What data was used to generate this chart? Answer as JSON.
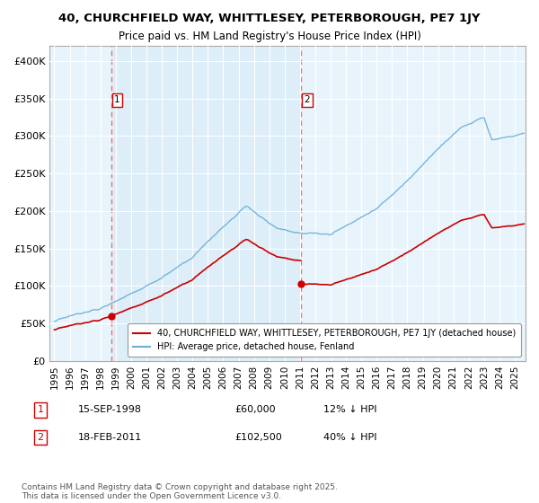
{
  "title": "40, CHURCHFIELD WAY, WHITTLESEY, PETERBOROUGH, PE7 1JY",
  "subtitle": "Price paid vs. HM Land Registry's House Price Index (HPI)",
  "legend_line1": "40, CHURCHFIELD WAY, WHITTLESEY, PETERBOROUGH, PE7 1JY (detached house)",
  "legend_line2": "HPI: Average price, detached house, Fenland",
  "annotation1_label": "1",
  "annotation1_date": "15-SEP-1998",
  "annotation1_price": "£60,000",
  "annotation1_hpi": "12% ↓ HPI",
  "annotation2_label": "2",
  "annotation2_date": "18-FEB-2011",
  "annotation2_price": "£102,500",
  "annotation2_hpi": "40% ↓ HPI",
  "copyright": "Contains HM Land Registry data © Crown copyright and database right 2025.\nThis data is licensed under the Open Government Licence v3.0.",
  "hpi_color": "#6baed6",
  "price_color": "#cc0000",
  "vline_color": "#ff6666",
  "annotation_box_color": "#cc0000",
  "bg_color": "#ddeef8",
  "bg_color2": "#e8f4fc",
  "grid_color": "#ffffff",
  "ylim": [
    0,
    420000
  ],
  "yticks": [
    0,
    50000,
    100000,
    150000,
    200000,
    250000,
    300000,
    350000,
    400000
  ],
  "xlim_start": 1994.7,
  "xlim_end": 2025.7,
  "buy1_year": 1998.708,
  "buy1_price": 60000,
  "buy2_year": 2011.083,
  "buy2_price": 102500
}
